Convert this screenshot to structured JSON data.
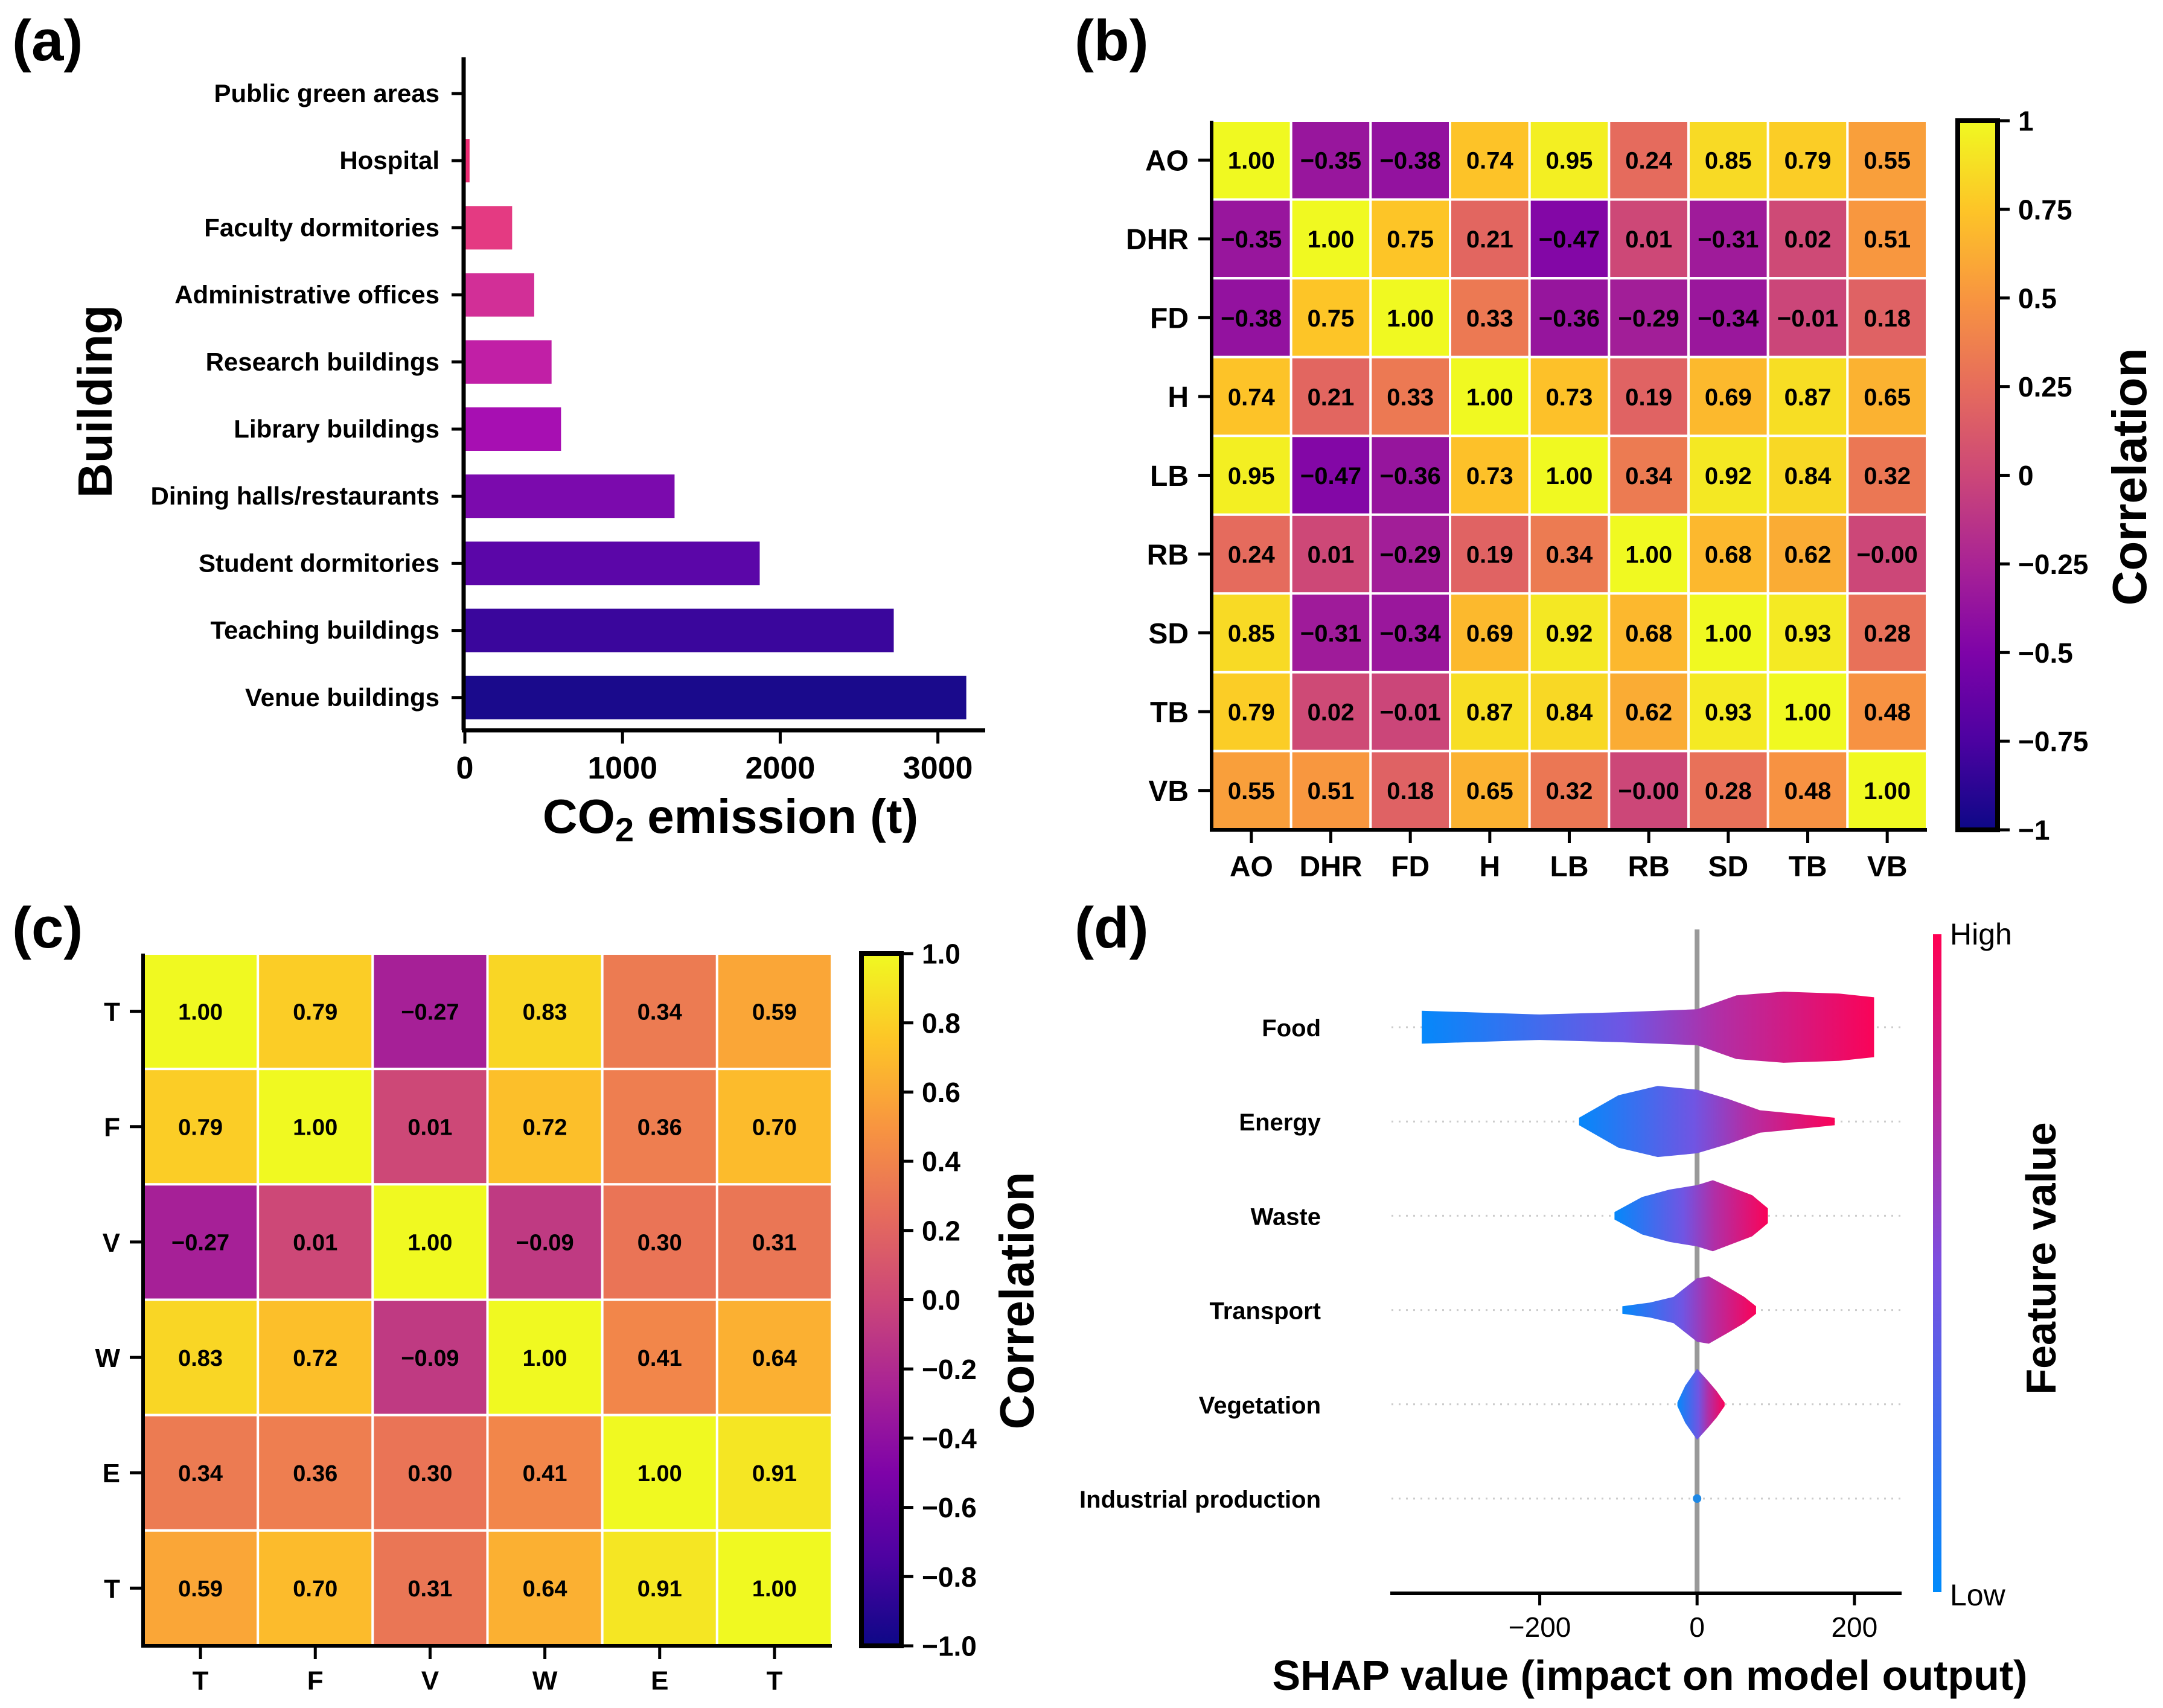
{
  "chart_data": [
    {
      "panel": "(a)",
      "type": "bar",
      "orientation": "horizontal",
      "categories": [
        "Public green areas",
        "Hospital",
        "Faculty dormitories",
        "Administrative offices",
        "Research buildings",
        "Library buildings",
        "Dining halls/restaurants",
        "Student dormitories",
        "Teaching buildings",
        "Venue buildings"
      ],
      "values": [
        5,
        30,
        300,
        440,
        550,
        610,
        1330,
        1870,
        2720,
        3180
      ],
      "colors": [
        "#f0147a",
        "#ec2b72",
        "#e43a82",
        "#d22f97",
        "#c11fa6",
        "#a70fb2",
        "#7b0aad",
        "#5b06a8",
        "#3a069c",
        "#1a0a8c"
      ],
      "xlabel_main": "CO",
      "xlabel_sub": "2",
      "xlabel_tail": " emission (t)",
      "ylabel": "Building",
      "xticks": [
        "0",
        "1000",
        "2000",
        "3000"
      ],
      "xtick_values": [
        0,
        1000,
        2000,
        3000
      ],
      "xlim": [
        0,
        3300
      ]
    },
    {
      "panel": "(b)",
      "type": "heatmap",
      "colormap": "plasma",
      "labels": [
        "AO",
        "DHR",
        "FD",
        "H",
        "LB",
        "RB",
        "SD",
        "TB",
        "VB"
      ],
      "matrix": [
        [
          1.0,
          -0.35,
          -0.38,
          0.74,
          0.95,
          0.24,
          0.85,
          0.79,
          0.55
        ],
        [
          -0.35,
          1.0,
          0.75,
          0.21,
          -0.47,
          0.01,
          -0.31,
          0.02,
          0.51
        ],
        [
          -0.38,
          0.75,
          1.0,
          0.33,
          -0.36,
          -0.29,
          -0.34,
          -0.01,
          0.18
        ],
        [
          0.74,
          0.21,
          0.33,
          1.0,
          0.73,
          0.19,
          0.69,
          0.87,
          0.65
        ],
        [
          0.95,
          -0.47,
          -0.36,
          0.73,
          1.0,
          0.34,
          0.92,
          0.84,
          0.32
        ],
        [
          0.24,
          0.01,
          -0.29,
          0.19,
          0.34,
          1.0,
          0.68,
          0.62,
          -0.0
        ],
        [
          0.85,
          -0.31,
          -0.34,
          0.69,
          0.92,
          0.68,
          1.0,
          0.93,
          0.28
        ],
        [
          0.79,
          0.02,
          -0.01,
          0.87,
          0.84,
          0.62,
          0.93,
          1.0,
          0.48
        ],
        [
          0.55,
          0.51,
          0.18,
          0.65,
          0.32,
          -0.0,
          0.28,
          0.48,
          1.0
        ]
      ],
      "cell_text": [
        [
          "1.00",
          "−0.35",
          "−0.38",
          "0.74",
          "0.95",
          "0.24",
          "0.85",
          "0.79",
          "0.55"
        ],
        [
          "−0.35",
          "1.00",
          "0.75",
          "0.21",
          "−0.47",
          "0.01",
          "−0.31",
          "0.02",
          "0.51"
        ],
        [
          "−0.38",
          "0.75",
          "1.00",
          "0.33",
          "−0.36",
          "−0.29",
          "−0.34",
          "−0.01",
          "0.18"
        ],
        [
          "0.74",
          "0.21",
          "0.33",
          "1.00",
          "0.73",
          "0.19",
          "0.69",
          "0.87",
          "0.65"
        ],
        [
          "0.95",
          "−0.47",
          "−0.36",
          "0.73",
          "1.00",
          "0.34",
          "0.92",
          "0.84",
          "0.32"
        ],
        [
          "0.24",
          "0.01",
          "−0.29",
          "0.19",
          "0.34",
          "1.00",
          "0.68",
          "0.62",
          "−0.00"
        ],
        [
          "0.85",
          "−0.31",
          "−0.34",
          "0.69",
          "0.92",
          "0.68",
          "1.00",
          "0.93",
          "0.28"
        ],
        [
          "0.79",
          "0.02",
          "−0.01",
          "0.87",
          "0.84",
          "0.62",
          "0.93",
          "1.00",
          "0.48"
        ],
        [
          "0.55",
          "0.51",
          "0.18",
          "0.65",
          "0.32",
          "−0.00",
          "0.28",
          "0.48",
          "1.00"
        ]
      ],
      "colorbar_label": "Correlation",
      "colorbar_ticks": [
        "1",
        "0.75",
        "0.5",
        "0.25",
        "0",
        "−0.25",
        "−0.5",
        "−0.75",
        "−1"
      ],
      "colorbar_tick_values": [
        1,
        0.75,
        0.5,
        0.25,
        0,
        -0.25,
        -0.5,
        -0.75,
        -1
      ],
      "vrange": [
        -1,
        1
      ]
    },
    {
      "panel": "(c)",
      "type": "heatmap",
      "colormap": "plasma",
      "labels": [
        "T",
        "F",
        "V",
        "W",
        "E",
        "T"
      ],
      "matrix": [
        [
          1.0,
          0.79,
          -0.27,
          0.83,
          0.34,
          0.59
        ],
        [
          0.79,
          1.0,
          0.01,
          0.72,
          0.36,
          0.7
        ],
        [
          -0.27,
          0.01,
          1.0,
          -0.09,
          0.3,
          0.31
        ],
        [
          0.83,
          0.72,
          -0.09,
          1.0,
          0.41,
          0.64
        ],
        [
          0.34,
          0.36,
          0.3,
          0.41,
          1.0,
          0.91
        ],
        [
          0.59,
          0.7,
          0.31,
          0.64,
          0.91,
          1.0
        ]
      ],
      "cell_text": [
        [
          "1.00",
          "0.79",
          "−0.27",
          "0.83",
          "0.34",
          "0.59"
        ],
        [
          "0.79",
          "1.00",
          "0.01",
          "0.72",
          "0.36",
          "0.70"
        ],
        [
          "−0.27",
          "0.01",
          "1.00",
          "−0.09",
          "0.30",
          "0.31"
        ],
        [
          "0.83",
          "0.72",
          "−0.09",
          "1.00",
          "0.41",
          "0.64"
        ],
        [
          "0.34",
          "0.36",
          "0.30",
          "0.41",
          "1.00",
          "0.91"
        ],
        [
          "0.59",
          "0.70",
          "0.31",
          "0.64",
          "0.91",
          "1.00"
        ]
      ],
      "colorbar_label": "Correlation",
      "colorbar_ticks": [
        "1.0",
        "0.8",
        "0.6",
        "0.4",
        "0.2",
        "0.0",
        "−0.2",
        "−0.4",
        "−0.6",
        "−0.8",
        "−1.0"
      ],
      "colorbar_tick_values": [
        1,
        0.8,
        0.6,
        0.4,
        0.2,
        0,
        -0.2,
        -0.4,
        -0.6,
        -0.8,
        -1
      ],
      "vrange": [
        -1,
        1
      ]
    },
    {
      "panel": "(d)",
      "type": "violin",
      "title": "",
      "features": [
        "Food",
        "Energy",
        "Waste",
        "Transport",
        "Vegetation",
        "Industrial production"
      ],
      "violins": [
        {
          "feature": "Food",
          "range": [
            -350,
            225
          ],
          "profile": [
            [
              -350,
              0.44
            ],
            [
              -200,
              0.34
            ],
            [
              -100,
              0.4
            ],
            [
              0,
              0.48
            ],
            [
              50,
              0.85
            ],
            [
              110,
              0.95
            ],
            [
              180,
              0.9
            ],
            [
              225,
              0.8
            ]
          ]
        },
        {
          "feature": "Energy",
          "range": [
            -150,
            175
          ],
          "profile": [
            [
              -150,
              0.1
            ],
            [
              -100,
              0.7
            ],
            [
              -50,
              0.95
            ],
            [
              0,
              0.85
            ],
            [
              40,
              0.6
            ],
            [
              80,
              0.3
            ],
            [
              120,
              0.22
            ],
            [
              175,
              0.1
            ]
          ]
        },
        {
          "feature": "Waste",
          "range": [
            -105,
            90
          ],
          "profile": [
            [
              -105,
              0.1
            ],
            [
              -70,
              0.5
            ],
            [
              -35,
              0.7
            ],
            [
              0,
              0.82
            ],
            [
              20,
              0.95
            ],
            [
              45,
              0.75
            ],
            [
              70,
              0.55
            ],
            [
              90,
              0.2
            ]
          ]
        },
        {
          "feature": "Transport",
          "range": [
            -95,
            75
          ],
          "profile": [
            [
              -95,
              0.1
            ],
            [
              -60,
              0.2
            ],
            [
              -30,
              0.35
            ],
            [
              0,
              0.85
            ],
            [
              15,
              0.9
            ],
            [
              40,
              0.6
            ],
            [
              60,
              0.35
            ],
            [
              75,
              0.1
            ]
          ]
        },
        {
          "feature": "Vegetation",
          "range": [
            -25,
            35
          ],
          "profile": [
            [
              -25,
              0.05
            ],
            [
              -15,
              0.5
            ],
            [
              -5,
              0.8
            ],
            [
              0,
              0.95
            ],
            [
              15,
              0.6
            ],
            [
              25,
              0.35
            ],
            [
              35,
              0.05
            ]
          ]
        },
        {
          "feature": "Industrial production",
          "range": [
            -2,
            2
          ],
          "profile": [
            [
              -2,
              0.08
            ],
            [
              0,
              0.1
            ],
            [
              2,
              0.08
            ]
          ]
        }
      ],
      "xlabel": "SHAP value (impact on model output)",
      "xticks": [
        "−200",
        "0",
        "200"
      ],
      "xtick_values": [
        -200,
        0,
        200
      ],
      "xlim": [
        -390,
        260
      ],
      "colorbar_label": "Feature value",
      "colorbar_high": "High",
      "colorbar_low": "Low",
      "colors": {
        "low": "#1e88e5",
        "high": "#ff0d57"
      }
    }
  ]
}
